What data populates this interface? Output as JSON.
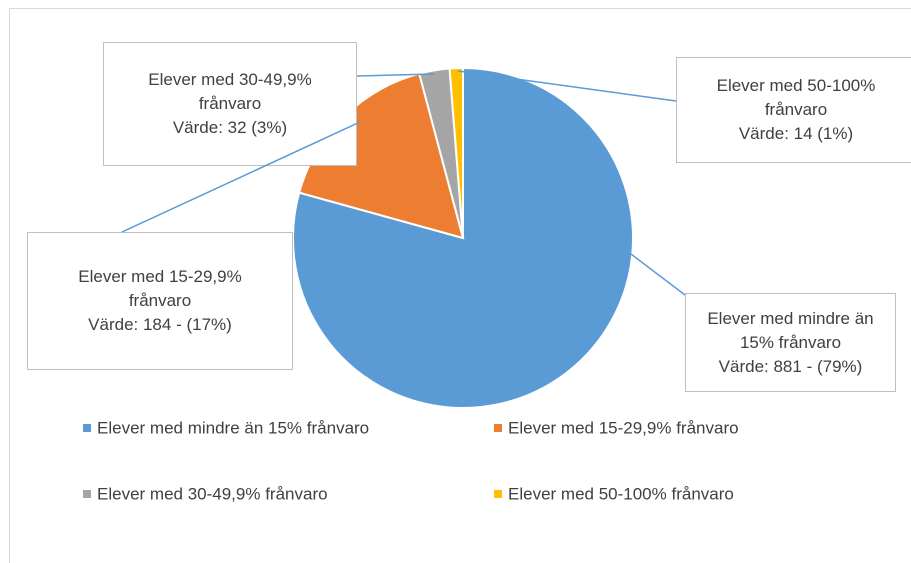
{
  "chart_data": {
    "type": "pie",
    "categories": [
      "Elever med mindre än 15% frånvaro",
      "Elever med 15-29,9% frånvaro",
      "Elever med 30-49,9% frånvaro",
      "Elever med 50-100% frånvaro"
    ],
    "values": [
      881,
      184,
      32,
      14
    ],
    "value_labels": [
      "Värde: 881 - (79%)",
      "Värde: 184 - (17%)",
      "Värde: 32 (3%)",
      "Värde: 14 (1%)"
    ],
    "colors": [
      "#5b9bd5",
      "#ed7d31",
      "#a5a5a5",
      "#ffc000"
    ],
    "legend": "bottom"
  }
}
